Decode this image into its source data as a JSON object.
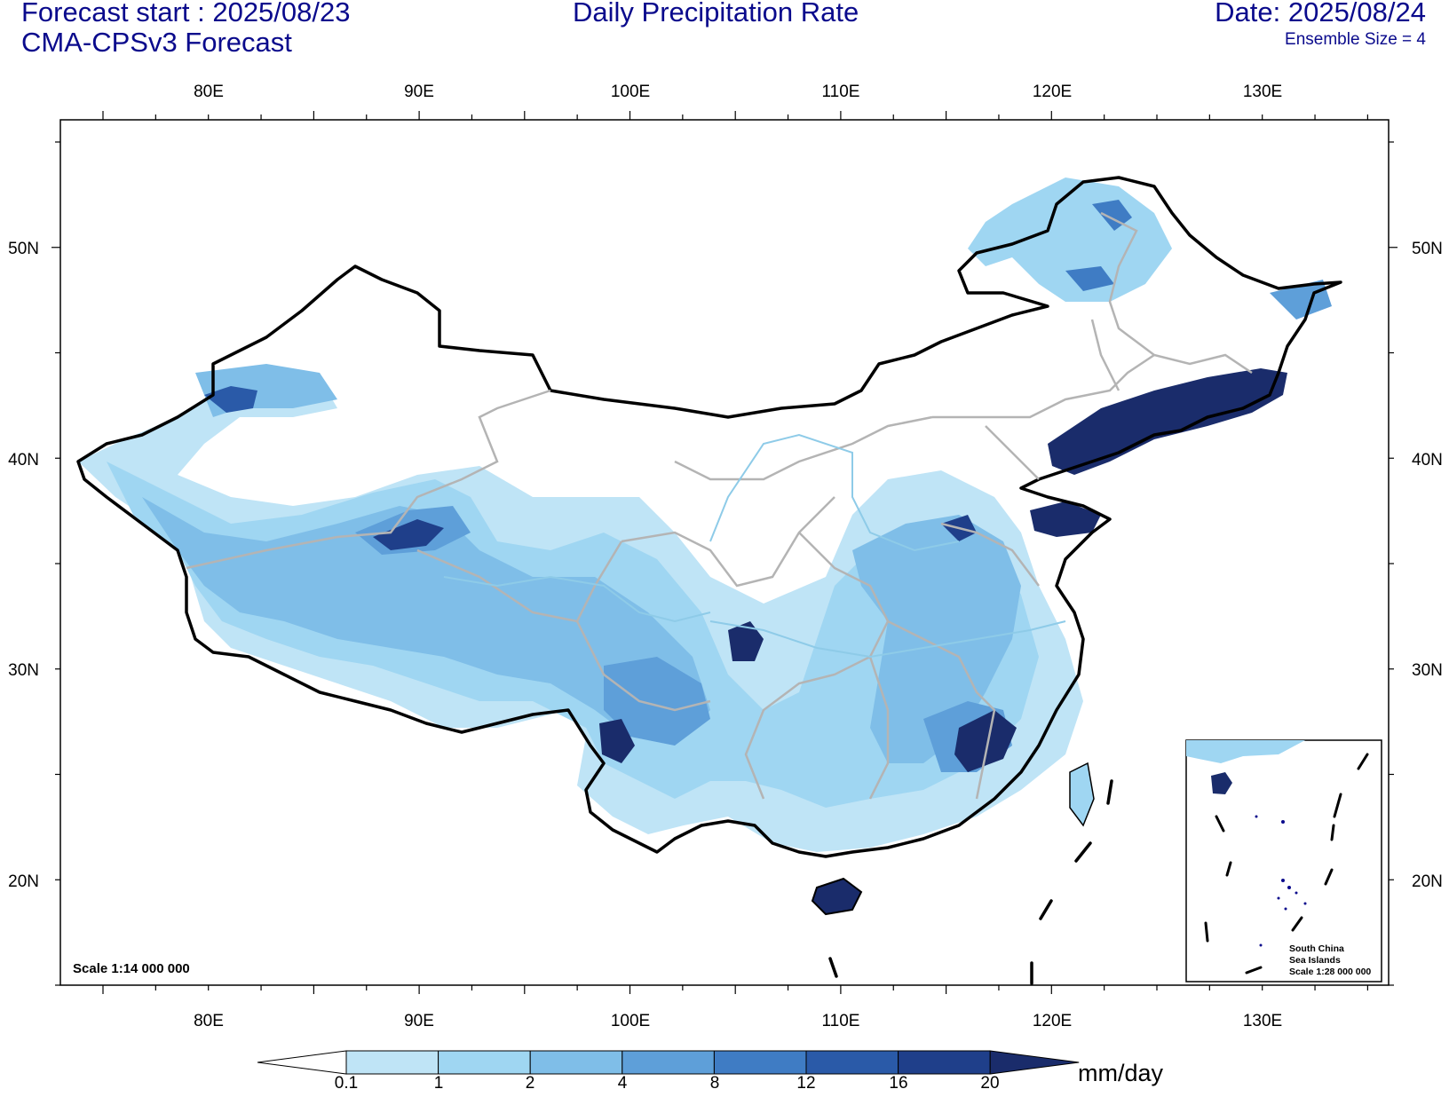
{
  "header": {
    "forecast_start": "Forecast start : 2025/08/23",
    "model": "CMA-CPSv3 Forecast",
    "title": "Daily Precipitation Rate",
    "date": "Date: 2025/08/24",
    "ensemble": "Ensemble Size = 4"
  },
  "map": {
    "lon_labels": [
      "80E",
      "90E",
      "100E",
      "110E",
      "120E",
      "130E"
    ],
    "lat_labels": [
      "50N",
      "40N",
      "30N",
      "20N"
    ],
    "scale_label": "Scale 1:14 000 000",
    "inset": {
      "line1": "South China",
      "line2": "Sea Islands",
      "line3": "Scale 1:28 000 000"
    }
  },
  "colorbar": {
    "levels": [
      "0.1",
      "1",
      "2",
      "4",
      "8",
      "12",
      "16",
      "20"
    ],
    "units": "mm/day",
    "colors": [
      "#ffffff",
      "#bfe4f6",
      "#9fd6f2",
      "#7fbee8",
      "#5e9fd9",
      "#3f7cc4",
      "#2a5aa8",
      "#1f3f8a",
      "#1a2c6b"
    ]
  }
}
